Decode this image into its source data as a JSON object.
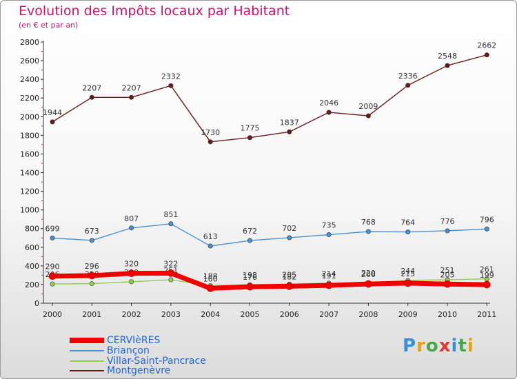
{
  "header": {
    "title": "Evolution des Impôts locaux par Habitant",
    "subtitle": "(en € et par an)"
  },
  "logo": {
    "letters": [
      "P",
      "r",
      "o",
      "x",
      "i",
      "t",
      "i"
    ],
    "colors": [
      "#3a8fd8",
      "#e0a020",
      "#4aa84a",
      "#d83a3a",
      "#3a8fd8",
      "#4aa84a",
      "#e0a020"
    ]
  },
  "chart_data": {
    "type": "line",
    "categories": [
      "2000",
      "2001",
      "2002",
      "2003",
      "2004",
      "2005",
      "2006",
      "2007",
      "2008",
      "2009",
      "2010",
      "2011"
    ],
    "ylim": [
      0,
      2800
    ],
    "yticks": [
      "0",
      "200",
      "400",
      "600",
      "800",
      "1000",
      "1200",
      "1400",
      "1600",
      "1800",
      "2000",
      "2200",
      "2400",
      "2600",
      "2800"
    ],
    "grid": false,
    "legend_placement": "bottom-left",
    "series": [
      {
        "name": "Montgenèvre",
        "color": "#6a1a1a",
        "values": [
          1944,
          2207,
          2207,
          2332,
          1730,
          1775,
          1837,
          2046,
          2009,
          2336,
          2548,
          2662
        ],
        "labels": [
          "1944",
          "2207",
          "2207",
          "2332",
          "1730",
          "1775",
          "1837",
          "2046",
          "2009",
          "2336",
          "2548",
          "2662"
        ]
      },
      {
        "name": "Briançon",
        "color": "#4a90d0",
        "values": [
          699,
          673,
          807,
          851,
          613,
          672,
          702,
          735,
          768,
          764,
          776,
          796
        ],
        "labels": [
          "699",
          "673",
          "807",
          "851",
          "613",
          "672",
          "702",
          "735",
          "768",
          "764",
          "776",
          "796"
        ]
      },
      {
        "name": "Villar-Saint-Pancrace",
        "color": "#8fd050",
        "values": [
          206,
          210,
          230,
          251,
          188,
          198,
          205,
          214,
          220,
          244,
          251,
          261
        ],
        "labels": [
          "206",
          "210",
          "230",
          "251",
          "188",
          "198",
          "205",
          "214",
          "220",
          "244",
          "251",
          "261"
        ]
      },
      {
        "name": "CERVIèRES",
        "color": "#f00000",
        "values": [
          290,
          296,
          320,
          322,
          160,
          176,
          182,
          191,
          206,
          215,
          205,
          199
        ],
        "labels": [
          "290",
          "296",
          "320",
          "322",
          "160",
          "176",
          "182",
          "191",
          "206",
          "215",
          "205",
          "199"
        ]
      }
    ]
  },
  "legend": [
    "CERVIèRES",
    "Briançon",
    "Villar-Saint-Pancrace",
    "Montgenèvre"
  ]
}
